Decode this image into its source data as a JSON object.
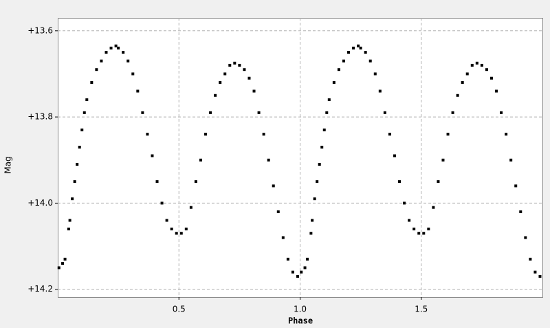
{
  "chart_data": {
    "type": "scatter",
    "xlabel": "Phase",
    "ylabel": "Mag",
    "x": [
      0.005,
      0.02,
      0.03,
      0.045,
      0.05,
      0.06,
      0.07,
      0.08,
      0.09,
      0.1,
      0.11,
      0.12,
      0.14,
      0.16,
      0.18,
      0.2,
      0.22,
      0.24,
      0.25,
      0.27,
      0.29,
      0.31,
      0.33,
      0.35,
      0.37,
      0.39,
      0.41,
      0.43,
      0.45,
      0.47,
      0.49,
      0.51,
      0.53,
      0.55,
      0.57,
      0.59,
      0.61,
      0.63,
      0.65,
      0.67,
      0.69,
      0.71,
      0.73,
      0.75,
      0.77,
      0.79,
      0.81,
      0.83,
      0.85,
      0.87,
      0.89,
      0.91,
      0.93,
      0.95,
      0.97,
      0.99,
      1.005,
      1.02,
      1.03,
      1.045,
      1.05,
      1.06,
      1.07,
      1.08,
      1.09,
      1.1,
      1.11,
      1.12,
      1.14,
      1.16,
      1.18,
      1.2,
      1.22,
      1.24,
      1.25,
      1.27,
      1.29,
      1.31,
      1.33,
      1.35,
      1.37,
      1.39,
      1.41,
      1.43,
      1.45,
      1.47,
      1.49,
      1.51,
      1.53,
      1.55,
      1.57,
      1.59,
      1.61,
      1.63,
      1.65,
      1.67,
      1.69,
      1.71,
      1.73,
      1.75,
      1.77,
      1.79,
      1.81,
      1.83,
      1.85,
      1.87,
      1.89,
      1.91,
      1.93,
      1.95,
      1.97,
      1.99
    ],
    "values": [
      14.15,
      14.14,
      14.13,
      14.06,
      14.04,
      13.99,
      13.95,
      13.91,
      13.87,
      13.83,
      13.79,
      13.76,
      13.72,
      13.69,
      13.67,
      13.65,
      13.64,
      13.635,
      13.64,
      13.65,
      13.67,
      13.7,
      13.74,
      13.79,
      13.84,
      13.89,
      13.95,
      14.0,
      14.04,
      14.06,
      14.07,
      14.07,
      14.06,
      14.01,
      13.95,
      13.9,
      13.84,
      13.79,
      13.75,
      13.72,
      13.7,
      13.68,
      13.675,
      13.68,
      13.69,
      13.71,
      13.74,
      13.79,
      13.84,
      13.9,
      13.96,
      14.02,
      14.08,
      14.13,
      14.16,
      14.17,
      14.16,
      14.15,
      14.13,
      14.07,
      14.04,
      13.99,
      13.95,
      13.91,
      13.87,
      13.83,
      13.79,
      13.76,
      13.72,
      13.69,
      13.67,
      13.65,
      13.64,
      13.635,
      13.64,
      13.65,
      13.67,
      13.7,
      13.74,
      13.79,
      13.84,
      13.89,
      13.95,
      14.0,
      14.04,
      14.06,
      14.07,
      14.07,
      14.06,
      14.01,
      13.95,
      13.9,
      13.84,
      13.79,
      13.75,
      13.72,
      13.7,
      13.68,
      13.675,
      13.68,
      13.69,
      13.71,
      13.74,
      13.79,
      13.84,
      13.9,
      13.96,
      14.02,
      14.08,
      14.13,
      14.16,
      14.17
    ],
    "color": "#000000",
    "xlim": [
      0,
      2.0
    ],
    "xticks": [
      0.5,
      {
        "value": 1.0,
        "label": "1.0"
      },
      1.5
    ],
    "ylim": [
      13.57,
      14.218
    ],
    "y_inverted": true,
    "yticks": [
      {
        "value": 13.6,
        "label": "+13.6"
      },
      {
        "value": 13.8,
        "label": "+13.8"
      },
      {
        "value": 14.0,
        "label": "+14.0"
      },
      {
        "value": 14.2,
        "label": "+14.2"
      }
    ],
    "grid": true
  }
}
